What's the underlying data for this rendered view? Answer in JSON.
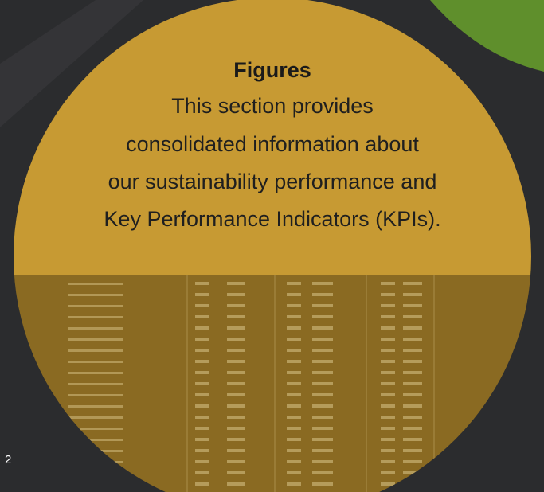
{
  "heading": "Figures",
  "body": [
    "This section provides",
    "consolidated information about",
    "our sustainability performance and",
    "Key Performance Indicators (KPIs)."
  ],
  "page_number": "2"
}
